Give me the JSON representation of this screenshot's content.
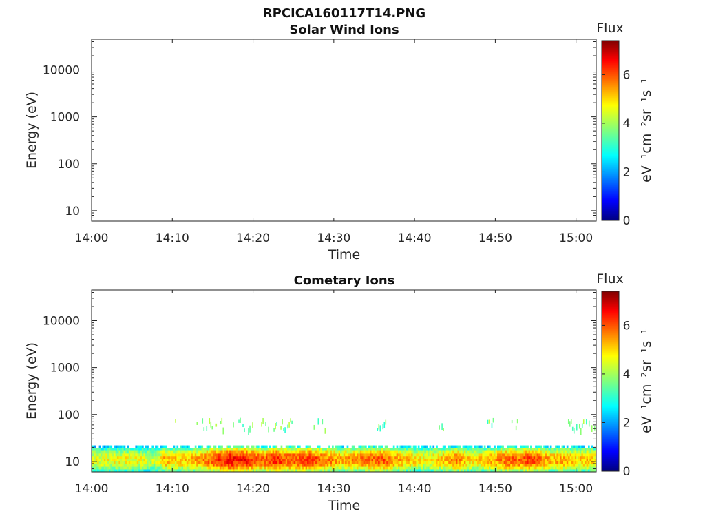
{
  "figure": {
    "filename": "RPCICA160117T14.PNG"
  },
  "chart_data": [
    {
      "type": "heatmap",
      "title": "Solar Wind Ions",
      "xlabel": "Time",
      "ylabel": "Energy (eV)",
      "x_ticks": [
        "14:00",
        "14:10",
        "14:20",
        "14:30",
        "14:40",
        "14:50",
        "15:00"
      ],
      "y_ticks": [
        "10",
        "100",
        "1000",
        "10000"
      ],
      "y_scale": "log",
      "ylim": [
        6,
        45000
      ],
      "xlim_minutes": [
        0,
        62.5
      ],
      "colorbar": {
        "label": "Flux",
        "units": "eV⁻¹cm⁻²sr⁻¹s⁻¹",
        "ticks": [
          "0",
          "2",
          "4",
          "6"
        ],
        "range": [
          0,
          7.4
        ],
        "colormap": "jet"
      },
      "series": []
    },
    {
      "type": "heatmap",
      "title": "Cometary Ions",
      "xlabel": "Time",
      "ylabel": "Energy (eV)",
      "x_ticks": [
        "14:00",
        "14:10",
        "14:20",
        "14:30",
        "14:40",
        "14:50",
        "15:00"
      ],
      "y_ticks": [
        "10",
        "100",
        "1000",
        "10000"
      ],
      "y_scale": "log",
      "ylim": [
        6,
        45000
      ],
      "xlim_minutes": [
        0,
        62.5
      ],
      "colorbar": {
        "label": "Flux",
        "units": "eV⁻¹cm⁻²sr⁻¹s⁻¹",
        "ticks": [
          "0",
          "2",
          "4",
          "6"
        ],
        "range": [
          0,
          7.4
        ],
        "colormap": "jet"
      },
      "series": [
        {
          "feature": "low-energy band",
          "energy_range_eV": [
            6,
            22
          ],
          "flux_profile_minutes": [
            [
              0,
              4.4
            ],
            [
              3,
              4.6
            ],
            [
              6,
              4.5
            ],
            [
              8,
              4.2
            ],
            [
              9,
              5.3
            ],
            [
              10,
              4.9
            ],
            [
              12,
              5.0
            ],
            [
              14,
              5.6
            ],
            [
              15,
              6.0
            ],
            [
              16,
              6.2
            ],
            [
              17,
              6.5
            ],
            [
              18,
              6.3
            ],
            [
              19,
              6.4
            ],
            [
              20,
              6.0
            ],
            [
              21,
              5.7
            ],
            [
              22,
              6.1
            ],
            [
              23,
              6.3
            ],
            [
              24,
              5.8
            ],
            [
              25,
              5.9
            ],
            [
              26,
              6.0
            ],
            [
              27,
              6.1
            ],
            [
              28,
              5.8
            ],
            [
              29,
              5.6
            ],
            [
              30,
              5.4
            ],
            [
              31,
              5.2
            ],
            [
              32,
              5.4
            ],
            [
              33,
              5.5
            ],
            [
              35,
              5.8
            ],
            [
              36,
              5.9
            ],
            [
              37,
              5.5
            ],
            [
              38,
              5.2
            ],
            [
              40,
              4.9
            ],
            [
              41,
              4.6
            ],
            [
              42,
              4.8
            ],
            [
              44,
              5.1
            ],
            [
              45,
              5.5
            ],
            [
              46,
              5.2
            ],
            [
              47,
              4.8
            ],
            [
              48,
              4.9
            ],
            [
              50,
              5.3
            ],
            [
              51,
              5.6
            ],
            [
              52,
              5.8
            ],
            [
              53,
              5.7
            ],
            [
              54,
              6.0
            ],
            [
              55,
              5.8
            ],
            [
              56,
              5.4
            ],
            [
              57,
              5.1
            ],
            [
              58,
              5.3
            ],
            [
              59,
              5.2
            ],
            [
              60,
              4.9
            ],
            [
              61,
              5.0
            ],
            [
              62.5,
              4.9
            ]
          ]
        },
        {
          "feature": "sparse scattered counts",
          "energy_range_eV": [
            50,
            85
          ],
          "flux_typical": 3.6,
          "time_windows_minutes": [
            [
              10,
              10.5
            ],
            [
              13,
              16.5
            ],
            [
              17.5,
              20
            ],
            [
              21,
              25
            ],
            [
              27.5,
              29
            ],
            [
              35,
              36.5
            ],
            [
              43,
              44
            ],
            [
              49,
              50
            ],
            [
              52,
              53
            ],
            [
              59,
              62.5
            ]
          ]
        }
      ]
    }
  ]
}
